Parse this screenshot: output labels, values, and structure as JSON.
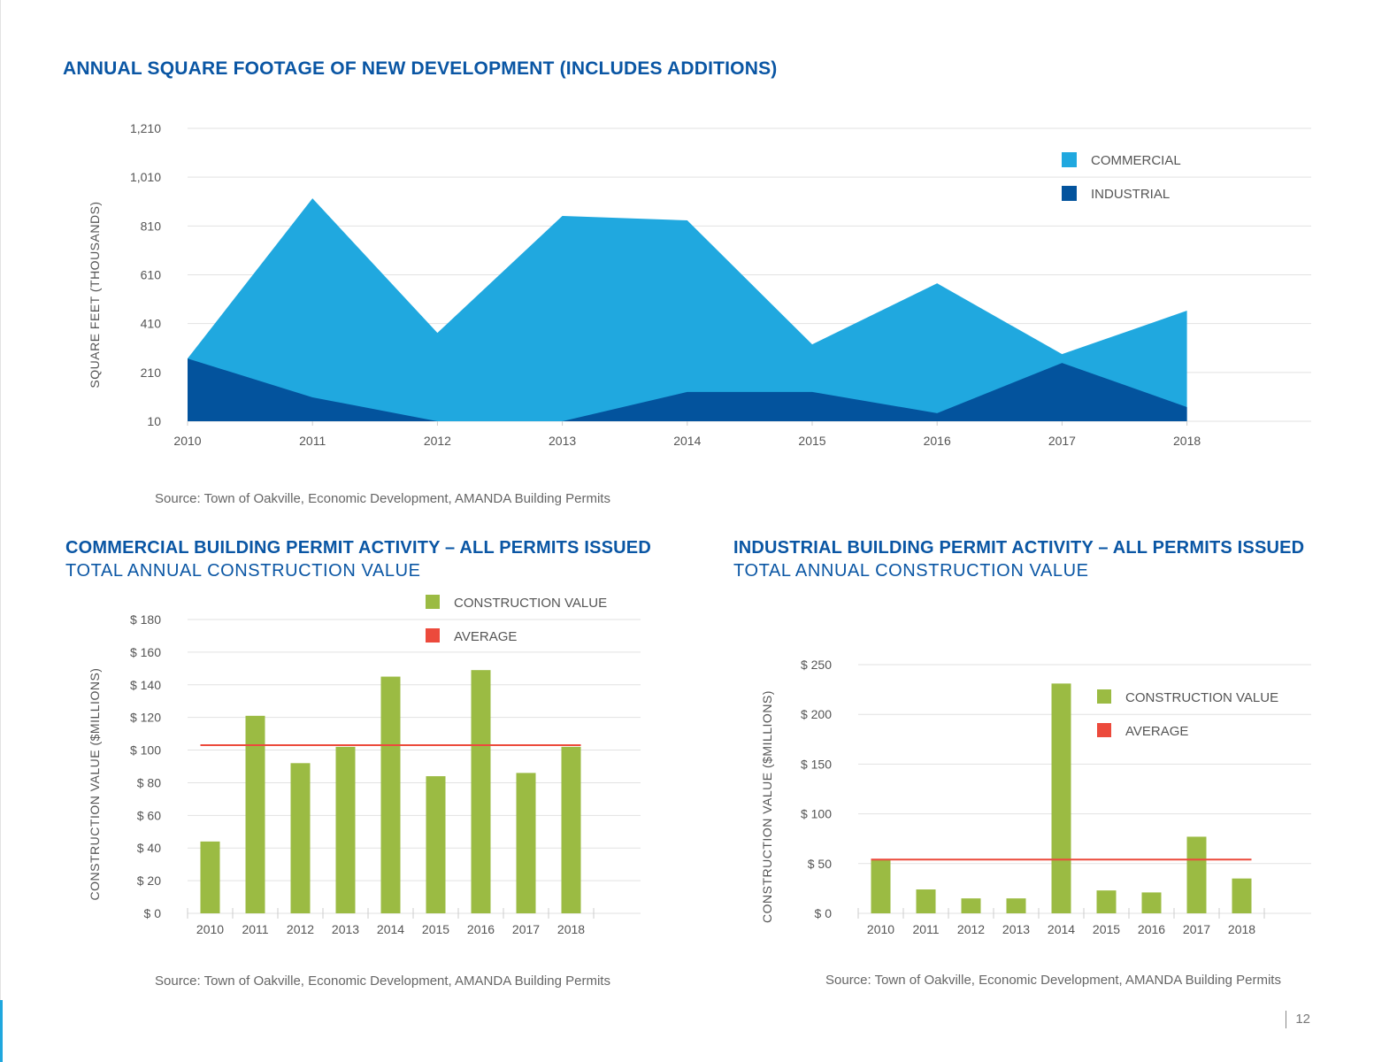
{
  "page": {
    "page_number": "12",
    "colors": {
      "title_blue": "#0a56a4",
      "commercial": "#20a8df",
      "industrial": "#03539d",
      "construction_value": "#9bbb43",
      "average": "#ec4a3c",
      "grid": "#e2e2e2",
      "text_gray": "#666666"
    }
  },
  "chart1": {
    "title": "ANNUAL SQUARE FOOTAGE OF NEW DEVELOPMENT (INCLUDES ADDITIONS)",
    "source": "Source: Town of Oakville, Economic Development, AMANDA Building Permits"
  },
  "chart2": {
    "title": "COMMERCIAL BUILDING PERMIT ACTIVITY – ALL PERMITS ISSUED",
    "subtitle": "TOTAL ANNUAL CONSTRUCTION VALUE",
    "source": "Source: Town of Oakville, Economic Development, AMANDA Building Permits"
  },
  "chart3": {
    "title": "INDUSTRIAL BUILDING PERMIT ACTIVITY – ALL PERMITS ISSUED",
    "subtitle": "TOTAL ANNUAL CONSTRUCTION VALUE",
    "source": "Source: Town of Oakville, Economic Development, AMANDA Building Permits"
  },
  "chart_data": [
    {
      "type": "area",
      "title": "ANNUAL SQUARE FOOTAGE OF NEW DEVELOPMENT (INCLUDES ADDITIONS)",
      "xlabel": "",
      "ylabel": "SQUARE FEET (THOUSANDS)",
      "categories": [
        "2010",
        "2011",
        "2012",
        "2013",
        "2014",
        "2015",
        "2016",
        "2017",
        "2018"
      ],
      "ylim": [
        10,
        1210
      ],
      "yticks": [
        10,
        210,
        410,
        610,
        810,
        1010,
        1210
      ],
      "ytick_labels": [
        "10",
        "210",
        "410",
        "610",
        "810",
        "1,010",
        "1,210"
      ],
      "grid": true,
      "stacked": false,
      "legend_position": "top-right",
      "series": [
        {
          "name": "COMMERCIAL",
          "color": "#20a8df",
          "values": [
            267,
            923,
            372,
            851,
            833,
            325,
            575,
            285,
            463
          ]
        },
        {
          "name": "INDUSTRIAL",
          "color": "#03539d",
          "values": [
            267,
            108,
            10,
            10,
            130,
            130,
            43,
            249,
            68
          ]
        }
      ]
    },
    {
      "type": "bar",
      "title": "COMMERCIAL BUILDING PERMIT ACTIVITY – ALL PERMITS ISSUED",
      "subtitle": "TOTAL ANNUAL CONSTRUCTION VALUE",
      "xlabel": "",
      "ylabel": "CONSTRUCTION VALUE ($MILLIONS)",
      "categories": [
        "2010",
        "2011",
        "2012",
        "2013",
        "2014",
        "2015",
        "2016",
        "2017",
        "2018"
      ],
      "ylim": [
        0,
        180
      ],
      "yticks": [
        0,
        20,
        40,
        60,
        80,
        100,
        120,
        140,
        160,
        180
      ],
      "ytick_labels": [
        "$ 0",
        "$ 20",
        "$ 40",
        "$ 60",
        "$ 80",
        "$ 100",
        "$ 120",
        "$ 140",
        "$ 160",
        "$ 180"
      ],
      "grid": true,
      "legend_position": "top-right",
      "series": [
        {
          "name": "CONSTRUCTION VALUE",
          "color": "#9bbb43",
          "values": [
            44,
            121,
            92,
            102,
            145,
            84,
            149,
            86,
            102
          ]
        },
        {
          "name": "AVERAGE",
          "color": "#ec4a3c",
          "type": "line",
          "values": [
            103,
            103,
            103,
            103,
            103,
            103,
            103,
            103,
            103
          ]
        }
      ]
    },
    {
      "type": "bar",
      "title": "INDUSTRIAL BUILDING PERMIT ACTIVITY – ALL PERMITS ISSUED",
      "subtitle": "TOTAL ANNUAL CONSTRUCTION VALUE",
      "xlabel": "",
      "ylabel": "CONSTRUCTION VALUE ($MILLIONS)",
      "categories": [
        "2010",
        "2011",
        "2012",
        "2013",
        "2014",
        "2015",
        "2016",
        "2017",
        "2018"
      ],
      "ylim": [
        0,
        250
      ],
      "yticks": [
        0,
        50,
        100,
        150,
        200,
        250
      ],
      "ytick_labels": [
        "$ 0",
        "$ 50",
        "$ 100",
        "$ 150",
        "$ 200",
        "$ 250"
      ],
      "grid": true,
      "legend_position": "top-right",
      "series": [
        {
          "name": "CONSTRUCTION VALUE",
          "color": "#9bbb43",
          "values": [
            54,
            24,
            15,
            15,
            231,
            23,
            21,
            77,
            35
          ]
        },
        {
          "name": "AVERAGE",
          "color": "#ec4a3c",
          "type": "line",
          "values": [
            54,
            54,
            54,
            54,
            54,
            54,
            54,
            54,
            54
          ]
        }
      ]
    }
  ]
}
